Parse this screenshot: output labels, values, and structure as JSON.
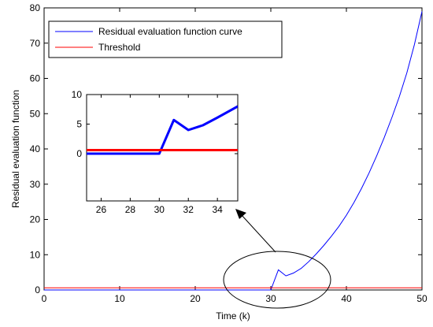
{
  "chart_data": [
    {
      "type": "line",
      "xlabel": "Time (k)",
      "ylabel": "Residual evaluation function",
      "xlim": [
        0,
        50
      ],
      "ylim": [
        0,
        80
      ],
      "xticks": [
        0,
        10,
        20,
        30,
        40,
        50
      ],
      "yticks": [
        0,
        10,
        20,
        30,
        40,
        50,
        60,
        70,
        80
      ],
      "grid": false,
      "legend_position": "top-left",
      "series": [
        {
          "name": "Residual evaluation function curve",
          "color": "#0000ff",
          "x": [
            0,
            30,
            31,
            32,
            33,
            34,
            35,
            36,
            37,
            38,
            39,
            40,
            41,
            42,
            43,
            44,
            45,
            46,
            47,
            48,
            49,
            50
          ],
          "y": [
            0,
            0,
            5.7,
            4.0,
            4.8,
            6.1,
            8.0,
            10.2,
            12.6,
            15.2,
            18.0,
            21.2,
            24.8,
            28.8,
            33.2,
            38.0,
            43.2,
            48.8,
            54.8,
            61.6,
            69.6,
            79.0
          ]
        },
        {
          "name": "Threshold",
          "color": "#ff0000",
          "x": [
            0,
            50
          ],
          "y": [
            0.6,
            0.6
          ]
        }
      ]
    },
    {
      "type": "line",
      "xlim": [
        25,
        35.4
      ],
      "ylim": [
        -8,
        10
      ],
      "xticks": [
        26,
        28,
        30,
        32,
        34
      ],
      "yticks": [
        0,
        5,
        10
      ],
      "grid": false,
      "series": [
        {
          "color": "#0000ff",
          "x": [
            25,
            30,
            31,
            32,
            33,
            34,
            35.4
          ],
          "y": [
            0,
            0,
            5.7,
            4.0,
            4.8,
            6.1,
            8.0
          ]
        },
        {
          "color": "#ff0000",
          "x": [
            25,
            35.4
          ],
          "y": [
            0.6,
            0.6
          ]
        }
      ]
    }
  ]
}
